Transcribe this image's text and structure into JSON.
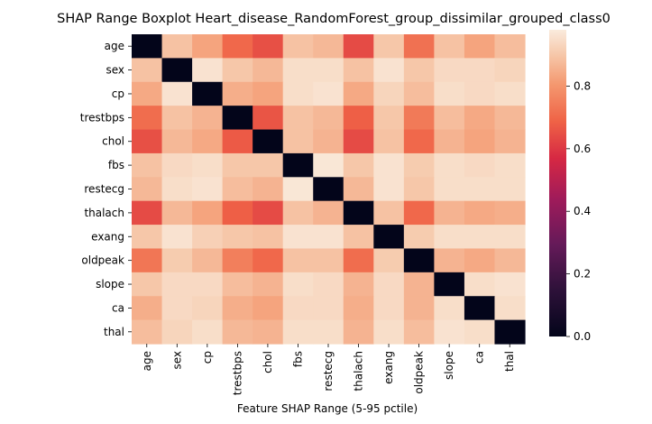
{
  "chart_data": {
    "type": "heatmap",
    "title": "SHAP Range Boxplot Heart_disease_RandomForest_group_dissimilar_grouped_class0",
    "xlabel": "Feature SHAP Range (5-95 pctile)",
    "ylabel": "",
    "categories": [
      "age",
      "sex",
      "cp",
      "trestbps",
      "chol",
      "fbs",
      "restecg",
      "thalach",
      "exang",
      "oldpeak",
      "slope",
      "ca",
      "thal"
    ],
    "colormap": "rocket",
    "colorbar": {
      "min": 0.0,
      "max": 0.98,
      "ticks": [
        0.0,
        0.2,
        0.4,
        0.6,
        0.8
      ]
    },
    "colorbar_tick_labels": [
      "0.0",
      "0.2",
      "0.4",
      "0.6",
      "0.8"
    ],
    "values": [
      [
        0.0,
        0.89,
        0.83,
        0.7,
        0.65,
        0.89,
        0.87,
        0.64,
        0.9,
        0.72,
        0.89,
        0.83,
        0.88
      ],
      [
        0.89,
        0.0,
        0.96,
        0.9,
        0.87,
        0.95,
        0.95,
        0.89,
        0.96,
        0.9,
        0.94,
        0.94,
        0.93
      ],
      [
        0.84,
        0.96,
        0.0,
        0.85,
        0.83,
        0.95,
        0.96,
        0.84,
        0.93,
        0.88,
        0.95,
        0.94,
        0.95
      ],
      [
        0.71,
        0.89,
        0.86,
        0.0,
        0.66,
        0.89,
        0.87,
        0.68,
        0.9,
        0.74,
        0.88,
        0.84,
        0.87
      ],
      [
        0.65,
        0.87,
        0.84,
        0.67,
        0.0,
        0.89,
        0.86,
        0.64,
        0.89,
        0.7,
        0.86,
        0.83,
        0.86
      ],
      [
        0.89,
        0.94,
        0.95,
        0.9,
        0.9,
        0.0,
        0.97,
        0.9,
        0.96,
        0.91,
        0.95,
        0.94,
        0.95
      ],
      [
        0.87,
        0.95,
        0.96,
        0.88,
        0.86,
        0.97,
        0.0,
        0.87,
        0.96,
        0.9,
        0.95,
        0.95,
        0.95
      ],
      [
        0.64,
        0.87,
        0.83,
        0.68,
        0.64,
        0.89,
        0.86,
        0.0,
        0.89,
        0.7,
        0.86,
        0.84,
        0.85
      ],
      [
        0.9,
        0.96,
        0.92,
        0.9,
        0.89,
        0.96,
        0.96,
        0.89,
        0.0,
        0.91,
        0.95,
        0.95,
        0.95
      ],
      [
        0.73,
        0.91,
        0.87,
        0.75,
        0.7,
        0.89,
        0.89,
        0.71,
        0.91,
        0.0,
        0.86,
        0.84,
        0.87
      ],
      [
        0.9,
        0.94,
        0.94,
        0.88,
        0.86,
        0.95,
        0.94,
        0.86,
        0.94,
        0.86,
        0.0,
        0.95,
        0.96
      ],
      [
        0.85,
        0.94,
        0.93,
        0.85,
        0.83,
        0.94,
        0.94,
        0.85,
        0.94,
        0.86,
        0.95,
        0.0,
        0.95
      ],
      [
        0.88,
        0.93,
        0.95,
        0.87,
        0.86,
        0.95,
        0.95,
        0.86,
        0.95,
        0.88,
        0.96,
        0.95,
        0.0
      ]
    ]
  }
}
